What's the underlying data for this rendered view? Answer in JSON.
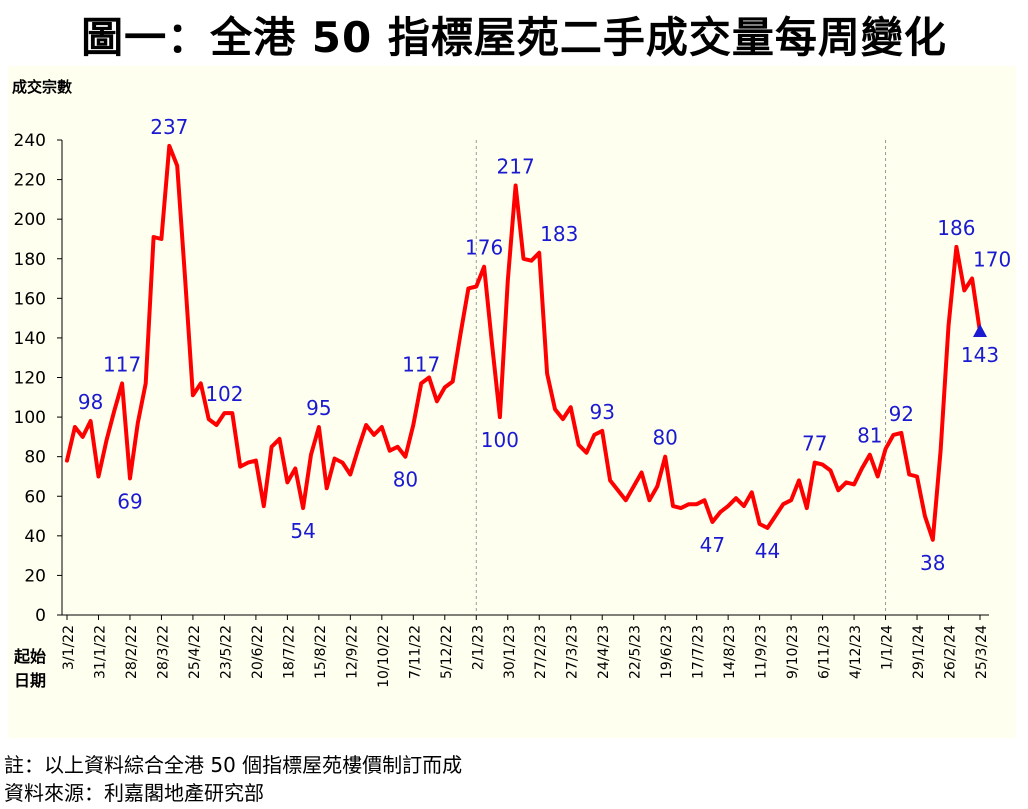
{
  "title": "圖一：全港 50 指標屋苑二手成交量每周變化",
  "chart_data": {
    "type": "line",
    "ylabel": "成交宗數",
    "xlabel": "起始\n日期",
    "ylim": [
      0,
      240
    ],
    "yticks": [
      0,
      20,
      40,
      60,
      80,
      100,
      120,
      140,
      160,
      180,
      200,
      220,
      240
    ],
    "grid": false,
    "line_color": "#ff0000",
    "label_color": "#1a1ad0",
    "x_tick_labels": [
      "3/1/22",
      "31/1/22",
      "28/2/22",
      "28/3/22",
      "25/4/22",
      "23/5/22",
      "20/6/22",
      "18/7/22",
      "15/8/22",
      "12/9/22",
      "10/10/22",
      "7/11/22",
      "5/12/22",
      "2/1/23",
      "30/1/23",
      "27/2/23",
      "27/3/23",
      "24/4/23",
      "22/5/23",
      "19/6/23",
      "17/7/23",
      "14/8/23",
      "11/9/23",
      "9/10/23",
      "6/11/23",
      "4/12/23",
      "1/1/24",
      "29/1/24",
      "26/2/24",
      "25/3/24"
    ],
    "year_dividers_at_week": [
      52,
      104
    ],
    "series": [
      {
        "values": [
          78,
          95,
          90,
          98,
          70,
          88,
          103,
          117,
          69,
          97,
          117,
          191,
          190,
          237,
          227,
          170,
          111,
          117,
          99,
          96,
          102,
          102,
          75,
          77,
          78,
          55,
          85,
          89,
          67,
          74,
          54,
          81,
          95,
          64,
          79,
          77,
          71,
          84,
          96,
          91,
          95,
          83,
          85,
          80,
          96,
          117,
          120,
          108,
          115,
          118,
          142,
          165,
          166,
          176,
          137,
          100,
          169,
          217,
          180,
          179,
          183,
          122,
          104,
          99,
          105,
          86,
          82,
          91,
          93,
          68,
          63,
          58,
          65,
          72,
          58,
          65,
          80,
          55,
          54,
          56,
          56,
          58,
          47,
          52,
          55,
          59,
          55,
          62,
          46,
          44,
          50,
          56,
          58,
          68,
          54,
          77,
          76,
          73,
          63,
          67,
          66,
          74,
          81,
          70,
          84,
          91,
          92,
          71,
          70,
          50,
          38,
          83,
          146,
          186,
          164,
          170,
          143
        ],
        "marker_last": "triangle"
      }
    ],
    "data_labels": [
      {
        "index": 3,
        "text": "98",
        "pos": "above"
      },
      {
        "index": 7,
        "text": "117",
        "pos": "above"
      },
      {
        "index": 8,
        "text": "69",
        "pos": "below"
      },
      {
        "index": 13,
        "text": "237",
        "pos": "above"
      },
      {
        "index": 20,
        "text": "102",
        "pos": "above"
      },
      {
        "index": 30,
        "text": "54",
        "pos": "below"
      },
      {
        "index": 32,
        "text": "95",
        "pos": "above"
      },
      {
        "index": 43,
        "text": "80",
        "pos": "below"
      },
      {
        "index": 45,
        "text": "117",
        "pos": "above"
      },
      {
        "index": 53,
        "text": "176",
        "pos": "above"
      },
      {
        "index": 55,
        "text": "100",
        "pos": "below"
      },
      {
        "index": 57,
        "text": "217",
        "pos": "above"
      },
      {
        "index": 60,
        "text": "183",
        "pos": "aboveright"
      },
      {
        "index": 68,
        "text": "93",
        "pos": "above"
      },
      {
        "index": 76,
        "text": "80",
        "pos": "above"
      },
      {
        "index": 82,
        "text": "47",
        "pos": "below"
      },
      {
        "index": 89,
        "text": "44",
        "pos": "below"
      },
      {
        "index": 95,
        "text": "77",
        "pos": "above"
      },
      {
        "index": 102,
        "text": "81",
        "pos": "above"
      },
      {
        "index": 106,
        "text": "92",
        "pos": "above"
      },
      {
        "index": 110,
        "text": "38",
        "pos": "below"
      },
      {
        "index": 113,
        "text": "186",
        "pos": "above"
      },
      {
        "index": 115,
        "text": "170",
        "pos": "aboveright"
      },
      {
        "index": 116,
        "text": "143",
        "pos": "below"
      }
    ]
  },
  "notes": {
    "line1": "註：以上資料綜合全港 50 個指標屋苑樓價制訂而成",
    "line2": "資料來源：利嘉閣地產研究部"
  }
}
